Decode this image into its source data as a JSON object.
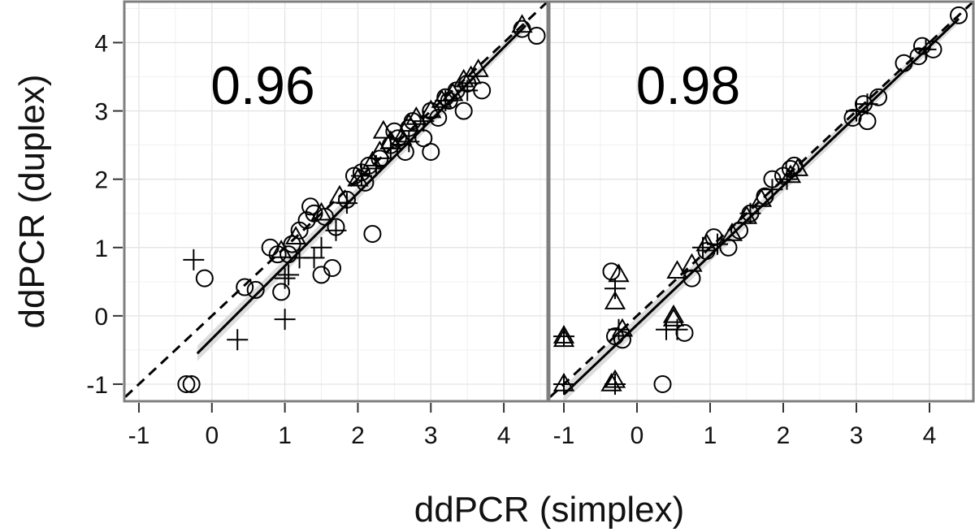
{
  "chart_data": [
    {
      "type": "scatter",
      "panel": "left",
      "annotation": "0.96",
      "xlabel": "ddPCR (simplex)",
      "ylabel": "ddPCR (duplex)",
      "xlim": [
        -1.2,
        4.6
      ],
      "ylim": [
        -1.25,
        4.6
      ],
      "xticks": [
        -1,
        0,
        1,
        2,
        3,
        4
      ],
      "yticks": [
        -1,
        0,
        1,
        2,
        3,
        4
      ],
      "grid": true,
      "reference_line": "dashed y = x",
      "fit_line": {
        "x": [
          -0.2,
          4.3
        ],
        "y": [
          -0.55,
          4.25
        ]
      },
      "series": [
        {
          "marker": "circle",
          "points": [
            [
              -0.35,
              -1.0
            ],
            [
              -0.28,
              -1.0
            ],
            [
              -0.1,
              0.55
            ],
            [
              0.45,
              0.42
            ],
            [
              0.6,
              0.38
            ],
            [
              0.8,
              1.0
            ],
            [
              0.9,
              0.9
            ],
            [
              0.95,
              0.35
            ],
            [
              1.05,
              0.9
            ],
            [
              1.1,
              1.05
            ],
            [
              1.2,
              1.25
            ],
            [
              1.3,
              1.4
            ],
            [
              1.35,
              1.6
            ],
            [
              1.4,
              1.5
            ],
            [
              1.5,
              0.6
            ],
            [
              1.55,
              1.45
            ],
            [
              1.65,
              0.7
            ],
            [
              1.7,
              1.3
            ],
            [
              1.85,
              1.7
            ],
            [
              1.95,
              2.05
            ],
            [
              2.05,
              2.1
            ],
            [
              2.1,
              1.95
            ],
            [
              2.15,
              2.2
            ],
            [
              2.2,
              1.2
            ],
            [
              2.3,
              2.3
            ],
            [
              2.45,
              2.5
            ],
            [
              2.5,
              2.7
            ],
            [
              2.55,
              2.6
            ],
            [
              2.65,
              2.4
            ],
            [
              2.7,
              2.75
            ],
            [
              2.75,
              2.85
            ],
            [
              2.9,
              2.6
            ],
            [
              3.0,
              2.4
            ],
            [
              3.0,
              3.0
            ],
            [
              3.1,
              2.9
            ],
            [
              3.2,
              3.2
            ],
            [
              3.25,
              3.15
            ],
            [
              3.35,
              3.3
            ],
            [
              3.45,
              3.0
            ],
            [
              3.5,
              3.4
            ],
            [
              3.7,
              3.3
            ],
            [
              4.25,
              4.2
            ],
            [
              4.45,
              4.1
            ]
          ]
        },
        {
          "marker": "triangle",
          "points": [
            [
              0.95,
              0.95
            ],
            [
              1.15,
              1.15
            ],
            [
              1.5,
              1.5
            ],
            [
              1.75,
              1.75
            ],
            [
              2.0,
              2.0
            ],
            [
              2.2,
              2.25
            ],
            [
              2.3,
              2.4
            ],
            [
              2.35,
              2.7
            ],
            [
              2.45,
              2.55
            ],
            [
              2.6,
              2.6
            ],
            [
              2.7,
              2.8
            ],
            [
              2.8,
              2.9
            ],
            [
              3.0,
              3.0
            ],
            [
              3.15,
              3.15
            ],
            [
              3.3,
              3.25
            ],
            [
              3.45,
              3.45
            ],
            [
              3.55,
              3.5
            ],
            [
              3.65,
              3.6
            ],
            [
              4.25,
              4.25
            ]
          ]
        },
        {
          "marker": "plus",
          "points": [
            [
              -0.25,
              0.82
            ],
            [
              0.35,
              -0.35
            ],
            [
              1.0,
              -0.05
            ],
            [
              1.0,
              0.55
            ],
            [
              1.05,
              0.6
            ],
            [
              1.2,
              0.85
            ],
            [
              1.4,
              0.85
            ],
            [
              1.5,
              1.0
            ],
            [
              1.7,
              1.25
            ],
            [
              1.85,
              1.65
            ],
            [
              2.05,
              2.05
            ],
            [
              2.25,
              2.2
            ],
            [
              2.45,
              2.45
            ],
            [
              2.7,
              2.55
            ],
            [
              2.9,
              2.85
            ],
            [
              3.2,
              3.15
            ],
            [
              3.5,
              3.3
            ]
          ]
        }
      ]
    },
    {
      "type": "scatter",
      "panel": "right",
      "annotation": "0.98",
      "xlabel": "ddPCR (simplex)",
      "ylabel": "ddPCR (duplex)",
      "xlim": [
        -1.2,
        4.6
      ],
      "ylim": [
        -1.25,
        4.6
      ],
      "xticks": [
        -1,
        0,
        1,
        2,
        3,
        4
      ],
      "yticks": [
        -1,
        0,
        1,
        2,
        3,
        4
      ],
      "grid": true,
      "reference_line": "dashed y = x",
      "fit_line": {
        "x": [
          -1.0,
          4.4
        ],
        "y": [
          -1.15,
          4.35
        ]
      },
      "series": [
        {
          "marker": "circle",
          "points": [
            [
              -0.35,
              0.65
            ],
            [
              -0.3,
              -0.3
            ],
            [
              -0.2,
              -0.35
            ],
            [
              0.35,
              -1.0
            ],
            [
              0.65,
              -0.25
            ],
            [
              0.75,
              0.55
            ],
            [
              0.95,
              0.95
            ],
            [
              1.05,
              1.15
            ],
            [
              1.25,
              1.0
            ],
            [
              1.4,
              1.25
            ],
            [
              1.55,
              1.5
            ],
            [
              1.75,
              1.75
            ],
            [
              1.85,
              2.0
            ],
            [
              2.0,
              2.05
            ],
            [
              2.1,
              2.15
            ],
            [
              2.15,
              2.2
            ],
            [
              2.95,
              2.9
            ],
            [
              3.1,
              3.1
            ],
            [
              3.15,
              2.85
            ],
            [
              3.3,
              3.2
            ],
            [
              3.65,
              3.7
            ],
            [
              3.85,
              3.8
            ],
            [
              3.9,
              3.95
            ],
            [
              4.05,
              3.9
            ],
            [
              4.4,
              4.4
            ]
          ]
        },
        {
          "marker": "triangle",
          "points": [
            [
              -1.0,
              -0.3
            ],
            [
              -1.0,
              -0.35
            ],
            [
              -1.0,
              -1.0
            ],
            [
              -0.35,
              -1.0
            ],
            [
              -0.3,
              -0.95
            ],
            [
              -0.25,
              0.6
            ],
            [
              -0.3,
              0.2
            ],
            [
              -0.2,
              -0.2
            ],
            [
              0.5,
              -0.05
            ],
            [
              0.5,
              0.0
            ],
            [
              0.55,
              0.65
            ],
            [
              0.75,
              0.75
            ],
            [
              0.95,
              1.05
            ],
            [
              1.3,
              1.2
            ],
            [
              1.5,
              1.45
            ],
            [
              1.7,
              1.7
            ],
            [
              2.1,
              2.05
            ],
            [
              2.2,
              2.15
            ]
          ]
        },
        {
          "marker": "plus",
          "points": [
            [
              -1.0,
              -0.3
            ],
            [
              -1.0,
              -1.0
            ],
            [
              -0.3,
              -1.0
            ],
            [
              -0.3,
              0.4
            ],
            [
              -0.25,
              -0.2
            ],
            [
              0.4,
              -0.2
            ],
            [
              0.55,
              -0.2
            ],
            [
              0.9,
              1.0
            ],
            [
              1.1,
              1.05
            ],
            [
              1.55,
              1.5
            ],
            [
              1.85,
              1.85
            ],
            [
              2.05,
              2.0
            ],
            [
              3.0,
              3.0
            ],
            [
              3.15,
              3.1
            ],
            [
              3.95,
              3.9
            ]
          ]
        }
      ]
    }
  ]
}
